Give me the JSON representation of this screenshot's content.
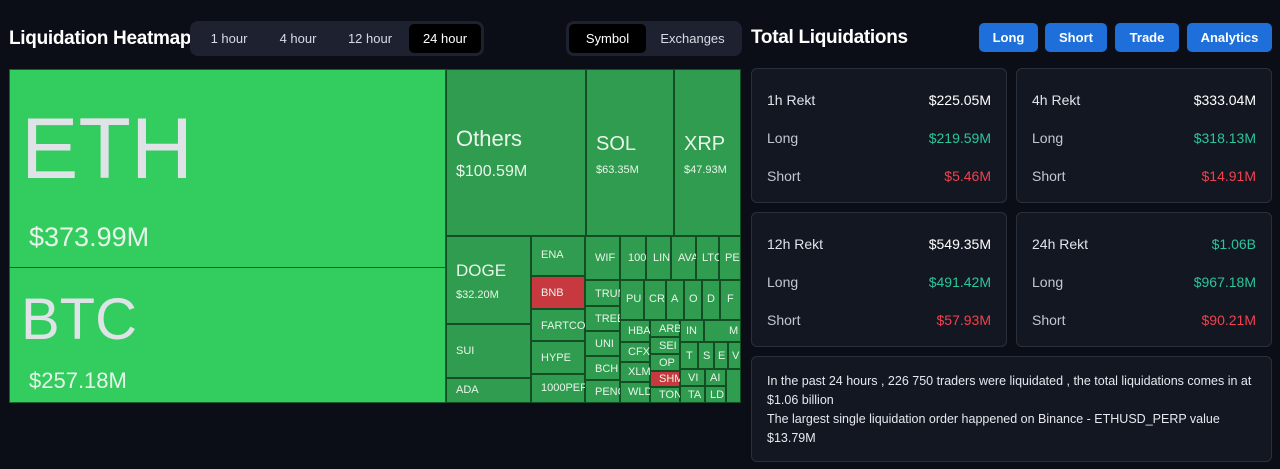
{
  "heatmap": {
    "title": "Liquidation Heatmap",
    "timeframes": [
      "1 hour",
      "4 hour",
      "12 hour",
      "24 hour"
    ],
    "active_timeframe": "24 hour",
    "views": [
      "Symbol",
      "Exchanges"
    ],
    "active_view": "Symbol",
    "tiles": {
      "eth": {
        "name": "ETH",
        "value": "$373.99M"
      },
      "btc": {
        "name": "BTC",
        "value": "$257.18M"
      },
      "others": {
        "name": "Others",
        "value": "$100.59M"
      },
      "sol": {
        "name": "SOL",
        "value": "$63.35M"
      },
      "xrp": {
        "name": "XRP",
        "value": "$47.93M"
      },
      "doge": {
        "name": "DOGE",
        "value": "$32.20M"
      },
      "sui": {
        "name": "SUI"
      },
      "ada": {
        "name": "ADA"
      },
      "ena": {
        "name": "ENA"
      },
      "bnb": {
        "name": "BNB"
      },
      "fartcoin": {
        "name": "FARTCOI"
      },
      "hype": {
        "name": "HYPE"
      },
      "pep1000": {
        "name": "1000PEP"
      },
      "wif": {
        "name": "WIF"
      },
      "x100": {
        "name": "100"
      },
      "lin": {
        "name": "LIN"
      },
      "ava": {
        "name": "AVA"
      },
      "ltc": {
        "name": "LTC"
      },
      "pe": {
        "name": "PE"
      },
      "trump": {
        "name": "TRUM"
      },
      "tree": {
        "name": "TREE"
      },
      "uni": {
        "name": "UNI"
      },
      "bch": {
        "name": "BCH"
      },
      "pengu": {
        "name": "PENG"
      },
      "pu": {
        "name": "PU"
      },
      "cr": {
        "name": "CR"
      },
      "aa": {
        "name": "A"
      },
      "ao": {
        "name": "O"
      },
      "ad": {
        "name": "D"
      },
      "af": {
        "name": "F"
      },
      "hba": {
        "name": "HBA"
      },
      "arb": {
        "name": "ARB"
      },
      "in": {
        "name": "IN"
      },
      "am": {
        "name": "M"
      },
      "cfx": {
        "name": "CFX"
      },
      "sei": {
        "name": "SEI"
      },
      "xlm": {
        "name": "XLM"
      },
      "op": {
        "name": "OP"
      },
      "shm": {
        "name": "SHM"
      },
      "wld": {
        "name": "WLD"
      },
      "ton": {
        "name": "TON"
      },
      "vi": {
        "name": "VI"
      },
      "ai": {
        "name": "AI"
      },
      "ta": {
        "name": "TA"
      },
      "ld": {
        "name": "LD"
      },
      "t1": {
        "name": "T"
      },
      "s1": {
        "name": "S"
      },
      "e1": {
        "name": "E"
      },
      "v1": {
        "name": "V"
      }
    }
  },
  "totals": {
    "title": "Total Liquidations",
    "buttons": [
      "Long",
      "Short",
      "Trade",
      "Analytics"
    ],
    "cards": [
      {
        "label": "1h Rekt",
        "total": "$225.05M",
        "long_label": "Long",
        "long": "$219.59M",
        "short_label": "Short",
        "short": "$5.46M"
      },
      {
        "label": "4h Rekt",
        "total": "$333.04M",
        "long_label": "Long",
        "long": "$318.13M",
        "short_label": "Short",
        "short": "$14.91M"
      },
      {
        "label": "12h Rekt",
        "total": "$549.35M",
        "long_label": "Long",
        "long": "$491.42M",
        "short_label": "Short",
        "short": "$57.93M"
      },
      {
        "label": "24h Rekt",
        "total": "$1.06B",
        "long_label": "Long",
        "long": "$967.18M",
        "short_label": "Short",
        "short": "$90.21M"
      }
    ],
    "note_line1": "In the past 24 hours , 226 750 traders were liquidated , the total liquidations comes in at $1.06 billion",
    "note_line2": "The largest single liquidation order happened on Binance - ETHUSD_PERP value $13.79M"
  },
  "colors": {
    "up": "#2cc59a",
    "down": "#f0414c",
    "button": "#1e6fd9",
    "tile_light": "#33cd5f",
    "tile_dark": "#2f9c4f"
  }
}
